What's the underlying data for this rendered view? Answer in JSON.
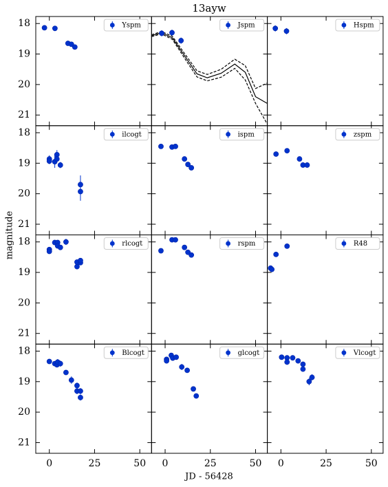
{
  "figure": {
    "title": "13ayw",
    "xlabel": "JD - 56428",
    "ylabel": "magnitude"
  },
  "chart_data": [
    {
      "type": "scatter",
      "series": [
        {
          "name": "Yspm",
          "color": "#0033cc",
          "x": [
            -2.7,
            3.1,
            10.3,
            12.2,
            14.1
          ],
          "values": [
            18.14,
            18.16,
            18.65,
            18.68,
            18.77
          ],
          "errors": [
            0.05,
            0.05,
            0.05,
            0.05,
            0.05
          ]
        }
      ],
      "xlim": [
        -7.5,
        56.5
      ],
      "ylim": [
        17.77,
        21.35
      ],
      "xticks": [
        0,
        25,
        50
      ],
      "yticks": [
        18,
        19,
        20,
        21
      ],
      "y_inverted": true,
      "legend": "upper right"
    },
    {
      "type": "scatter",
      "series": [
        {
          "name": "Jspm",
          "color": "#0033cc",
          "x": [
            -1.9,
            3.8,
            8.8
          ],
          "values": [
            18.32,
            18.3,
            18.56
          ],
          "errors": [
            0.1,
            0.1,
            0.1
          ]
        }
      ],
      "lines": [
        {
          "dashed": false,
          "color": "#000000",
          "x": [
            -7.5,
            -2,
            4,
            11.8,
            17.6,
            23.3,
            31,
            38.5,
            44.3,
            50,
            56.5
          ],
          "values": [
            18.4,
            18.3,
            18.47,
            19.15,
            19.65,
            19.78,
            19.63,
            19.33,
            19.6,
            20.4,
            20.62
          ]
        },
        {
          "dashed": true,
          "color": "#000000",
          "x": [
            -7.5,
            -2,
            4,
            11.8,
            17.6,
            23.3,
            31,
            38.5,
            44.3,
            50,
            56.5
          ],
          "values": [
            18.37,
            18.26,
            18.42,
            19.07,
            19.55,
            19.67,
            19.5,
            19.17,
            19.38,
            20.13,
            19.95
          ]
        },
        {
          "dashed": true,
          "color": "#000000",
          "x": [
            -7.5,
            -2,
            4,
            11.8,
            17.6,
            23.3,
            31,
            38.5,
            44.3,
            50,
            56.5
          ],
          "values": [
            18.43,
            18.34,
            18.52,
            19.23,
            19.75,
            19.88,
            19.76,
            19.47,
            19.85,
            20.62,
            21.3
          ]
        }
      ],
      "xlim": [
        -7.5,
        56.5
      ],
      "ylim": [
        17.77,
        21.35
      ],
      "xticks": [
        0,
        25,
        50
      ],
      "yticks": [
        18,
        19,
        20,
        21
      ],
      "y_inverted": true,
      "legend": "upper right"
    },
    {
      "type": "scatter",
      "series": [
        {
          "name": "Hspm",
          "color": "#0033cc",
          "x": [
            -3.1,
            3.1
          ],
          "values": [
            18.16,
            18.25
          ],
          "errors": [
            0.1,
            0.1
          ]
        }
      ],
      "xlim": [
        -7.5,
        56.5
      ],
      "ylim": [
        17.77,
        21.35
      ],
      "xticks": [
        0,
        25,
        50
      ],
      "yticks": [
        18,
        19,
        20,
        21
      ],
      "y_inverted": true,
      "legend": "upper right"
    },
    {
      "type": "scatter",
      "series": [
        {
          "name": "ilcogt",
          "color": "#0033cc",
          "x": [
            0,
            0,
            3,
            4.2,
            4.2,
            6.1,
            17.2,
            17.2
          ],
          "values": [
            18.86,
            18.93,
            18.95,
            18.72,
            18.86,
            19.06,
            19.7,
            19.93
          ],
          "errors": [
            0.12,
            0.1,
            0.2,
            0.15,
            0.1,
            0.1,
            0.3,
            0.3
          ]
        }
      ],
      "xlim": [
        -7.5,
        56.5
      ],
      "ylim": [
        17.77,
        21.35
      ],
      "xticks": [
        0,
        25,
        50
      ],
      "yticks": [
        18,
        19,
        20,
        21
      ],
      "y_inverted": true,
      "legend": "upper right"
    },
    {
      "type": "scatter",
      "series": [
        {
          "name": "ispm",
          "color": "#0033cc",
          "x": [
            -2.3,
            3.8,
            5.7,
            10.7,
            12.6,
            14.5
          ],
          "values": [
            18.45,
            18.47,
            18.45,
            18.86,
            19.04,
            19.15
          ],
          "errors": [
            0.05,
            0.05,
            0.05,
            0.05,
            0.05,
            0.05
          ]
        }
      ],
      "xlim": [
        -7.5,
        56.5
      ],
      "ylim": [
        17.77,
        21.35
      ],
      "xticks": [
        0,
        25,
        50
      ],
      "yticks": [
        18,
        19,
        20,
        21
      ],
      "y_inverted": true,
      "legend": "upper right"
    },
    {
      "type": "scatter",
      "series": [
        {
          "name": "zspm",
          "color": "#0033cc",
          "x": [
            -2.7,
            3.4,
            10.3,
            12.2,
            14.5
          ],
          "values": [
            18.7,
            18.59,
            18.86,
            19.06,
            19.06
          ],
          "errors": [
            0.05,
            0.05,
            0.05,
            0.08,
            0.08
          ]
        }
      ],
      "xlim": [
        -7.5,
        56.5
      ],
      "ylim": [
        17.77,
        21.35
      ],
      "xticks": [
        0,
        25,
        50
      ],
      "yticks": [
        18,
        19,
        20,
        21
      ],
      "y_inverted": true,
      "legend": "upper right"
    },
    {
      "type": "scatter",
      "series": [
        {
          "name": "rlcogt",
          "color": "#0033cc",
          "x": [
            0,
            0,
            3,
            4.6,
            4.6,
            6.1,
            9.2,
            15.3,
            15.3,
            17.2,
            17.2
          ],
          "values": [
            18.25,
            18.31,
            18.02,
            18.02,
            18.13,
            18.18,
            18.0,
            18.81,
            18.66,
            18.68,
            18.61
          ],
          "errors": [
            0.08,
            0.08,
            0.08,
            0.08,
            0.08,
            0.08,
            0.1,
            0.08,
            0.08,
            0.08,
            0.08
          ]
        }
      ],
      "xlim": [
        -7.5,
        56.5
      ],
      "ylim": [
        17.77,
        21.35
      ],
      "xticks": [
        0,
        25,
        50
      ],
      "yticks": [
        18,
        19,
        20,
        21
      ],
      "y_inverted": true,
      "legend": "upper right"
    },
    {
      "type": "scatter",
      "series": [
        {
          "name": "rspm",
          "color": "#0033cc",
          "x": [
            -2.3,
            3.8,
            5.7,
            10.7,
            12.6,
            14.5
          ],
          "values": [
            18.29,
            17.93,
            17.93,
            18.18,
            18.34,
            18.43
          ],
          "errors": [
            0.05,
            0.05,
            0.05,
            0.05,
            0.05,
            0.05
          ]
        }
      ],
      "xlim": [
        -7.5,
        56.5
      ],
      "ylim": [
        17.77,
        21.35
      ],
      "xticks": [
        0,
        25,
        50
      ],
      "yticks": [
        18,
        19,
        20,
        21
      ],
      "y_inverted": true,
      "legend": "upper right"
    },
    {
      "type": "scatter",
      "series": [
        {
          "name": "R48",
          "color": "#0033cc",
          "x": [
            -5.7,
            -5,
            -2.7,
            3.4
          ],
          "values": [
            18.86,
            18.9,
            18.41,
            18.14
          ],
          "errors": [
            0.06,
            0.06,
            0.06,
            0.06
          ]
        }
      ],
      "xlim": [
        -7.5,
        56.5
      ],
      "ylim": [
        17.77,
        21.35
      ],
      "xticks": [
        0,
        25,
        50
      ],
      "yticks": [
        18,
        19,
        20,
        21
      ],
      "y_inverted": true,
      "legend": "upper right"
    },
    {
      "type": "scatter",
      "series": [
        {
          "name": "Blcogt",
          "color": "#0033cc",
          "x": [
            0,
            3,
            4.2,
            4.6,
            6.1,
            9.2,
            12.2,
            15.3,
            15.3,
            17.2,
            17.2
          ],
          "values": [
            18.34,
            18.41,
            18.45,
            18.36,
            18.41,
            18.7,
            18.95,
            19.13,
            19.31,
            19.31,
            19.52
          ],
          "errors": [
            0.06,
            0.08,
            0.08,
            0.1,
            0.1,
            0.08,
            0.12,
            0.1,
            0.1,
            0.1,
            0.1
          ]
        }
      ],
      "xlim": [
        -7.5,
        56.5
      ],
      "ylim": [
        17.77,
        21.35
      ],
      "xticks": [
        0,
        25,
        50
      ],
      "yticks": [
        18,
        19,
        20,
        21
      ],
      "y_inverted": true,
      "legend": "upper right"
    },
    {
      "type": "scatter",
      "series": [
        {
          "name": "glcogt",
          "color": "#0033cc",
          "x": [
            0.8,
            0.8,
            3.4,
            4.2,
            6.1,
            9.2,
            12.2,
            15.6,
            17.2
          ],
          "values": [
            18.27,
            18.32,
            18.14,
            18.23,
            18.2,
            18.52,
            18.63,
            19.24,
            19.47
          ],
          "errors": [
            0.08,
            0.08,
            0.08,
            0.08,
            0.08,
            0.1,
            0.08,
            0.08,
            0.08
          ]
        }
      ],
      "xlim": [
        -7.5,
        56.5
      ],
      "ylim": [
        17.77,
        21.35
      ],
      "xticks": [
        0,
        25,
        50
      ],
      "yticks": [
        18,
        19,
        20,
        21
      ],
      "y_inverted": true,
      "legend": "upper right"
    },
    {
      "type": "scatter",
      "series": [
        {
          "name": "Vlcogt",
          "color": "#0033cc",
          "x": [
            0.4,
            3.4,
            3.4,
            6.5,
            9.5,
            12.2,
            12.2,
            15.6,
            17.2
          ],
          "values": [
            18.2,
            18.22,
            18.36,
            18.22,
            18.32,
            18.43,
            18.59,
            19.0,
            18.86
          ],
          "errors": [
            0.06,
            0.08,
            0.08,
            0.08,
            0.06,
            0.08,
            0.08,
            0.12,
            0.1
          ]
        }
      ],
      "xlim": [
        -7.5,
        56.5
      ],
      "ylim": [
        17.77,
        21.35
      ],
      "xticks": [
        0,
        25,
        50
      ],
      "yticks": [
        18,
        19,
        20,
        21
      ],
      "y_inverted": true,
      "legend": "upper right"
    }
  ]
}
